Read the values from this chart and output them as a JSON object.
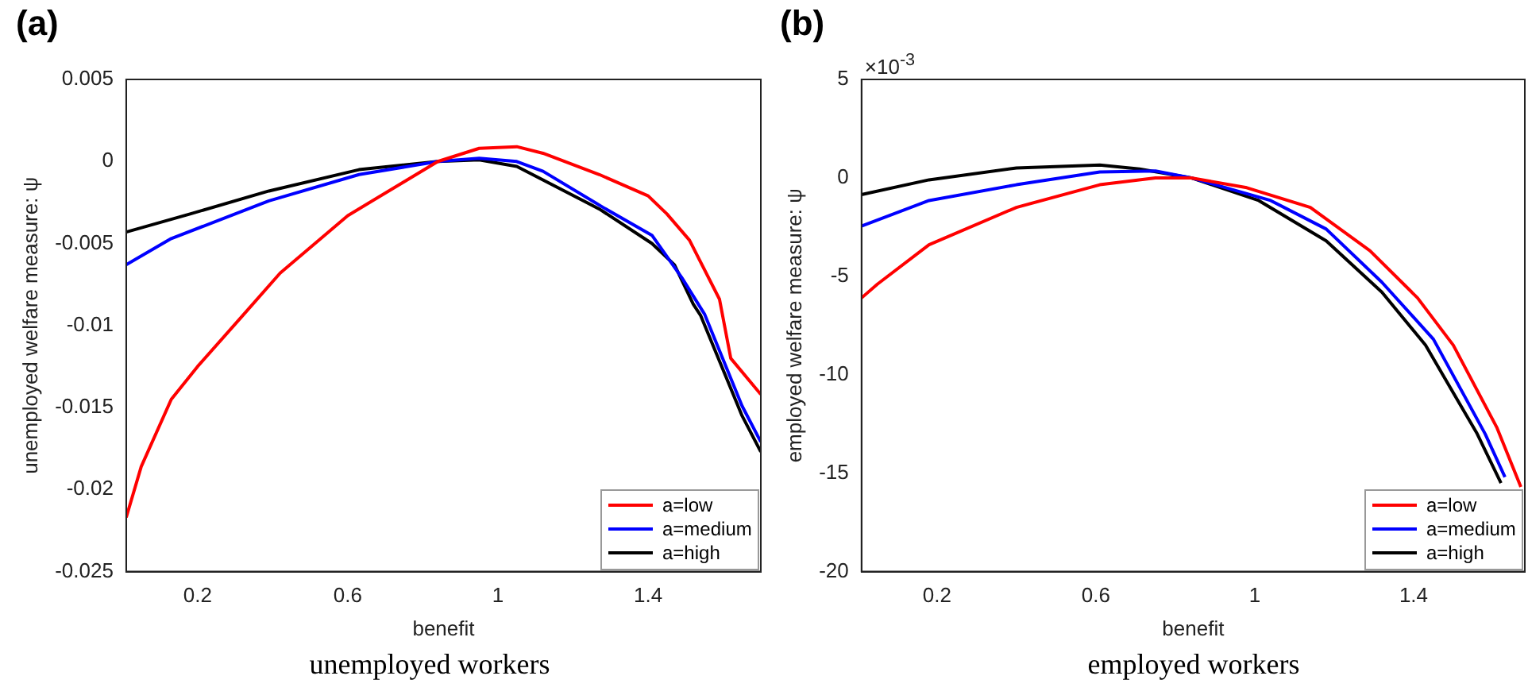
{
  "chart_data": [
    {
      "type": "line",
      "title": "(a)",
      "subtitle": "unemployed workers",
      "xlabel": "benefit",
      "ylabel": "unemployed welfare measure: ψ",
      "xlim": [
        0.01,
        1.7
      ],
      "xticks": [
        0.2,
        0.6,
        1,
        1.4
      ],
      "ylim": [
        -0.025,
        0.005
      ],
      "yticks": [
        -0.025,
        -0.02,
        -0.015,
        -0.01,
        -0.005,
        0,
        0.005
      ],
      "legend": "bottom right",
      "series": [
        {
          "name": "a=low",
          "color": "#ff0000",
          "x": [
            0.01,
            0.05,
            0.13,
            0.2,
            0.32,
            0.42,
            0.6,
            0.76,
            0.84,
            0.95,
            1.05,
            1.12,
            1.27,
            1.4,
            1.45,
            1.51,
            1.59,
            1.62,
            1.7
          ],
          "values": [
            -0.0217,
            -0.0186,
            -0.0145,
            -0.0125,
            -0.0094,
            -0.0068,
            -0.0033,
            -0.0011,
            0,
            0.0008,
            0.0009,
            0.0005,
            -0.0008,
            -0.0021,
            -0.0032,
            -0.0048,
            -0.0084,
            -0.012,
            -0.0142
          ]
        },
        {
          "name": "a=medium",
          "color": "#0000ff",
          "x": [
            0.01,
            0.13,
            0.39,
            0.63,
            0.84,
            0.95,
            1.05,
            1.12,
            1.28,
            1.41,
            1.49,
            1.55,
            1.65,
            1.7
          ],
          "values": [
            -0.0063,
            -0.0047,
            -0.0024,
            -0.0008,
            0,
            0.0002,
            0,
            -0.0006,
            -0.0028,
            -0.0045,
            -0.0071,
            -0.0093,
            -0.0149,
            -0.0171
          ]
        },
        {
          "name": "a=high",
          "color": "#000000",
          "x": [
            0.01,
            0.18,
            0.39,
            0.63,
            0.84,
            0.95,
            1.05,
            1.27,
            1.41,
            1.47,
            1.52,
            1.54,
            1.65,
            1.7
          ],
          "values": [
            -0.0043,
            -0.0032,
            -0.0018,
            -0.0005,
            0,
            0.0001,
            -0.0003,
            -0.0029,
            -0.005,
            -0.0063,
            -0.0087,
            -0.0094,
            -0.0155,
            -0.0177
          ]
        }
      ]
    },
    {
      "type": "line",
      "title": "(b)",
      "subtitle": "employed workers",
      "xlabel": "benefit",
      "ylabel": "employed welfare measure: ψ",
      "annotations": [
        "×10$^{-3}$"
      ],
      "xlim": [
        0.01,
        1.68
      ],
      "xticks": [
        0.2,
        0.6,
        1,
        1.4
      ],
      "ylim": [
        -20,
        5
      ],
      "yticks": [
        -20,
        -15,
        -10,
        -5,
        0,
        5
      ],
      "legend": "bottom right",
      "series": [
        {
          "name": "a=low",
          "color": "#ff0000",
          "x": [
            0.01,
            0.05,
            0.18,
            0.4,
            0.61,
            0.75,
            0.84,
            0.98,
            1.14,
            1.29,
            1.41,
            1.5,
            1.61,
            1.67
          ],
          "values": [
            -6.1,
            -5.4,
            -3.4,
            -1.5,
            -0.35,
            0,
            0,
            -0.5,
            -1.5,
            -3.7,
            -6.1,
            -8.5,
            -12.7,
            -15.7
          ]
        },
        {
          "name": "a=medium",
          "color": "#0000ff",
          "x": [
            0.01,
            0.18,
            0.4,
            0.61,
            0.75,
            0.84,
            1.04,
            1.18,
            1.32,
            1.45,
            1.58,
            1.63
          ],
          "values": [
            -2.45,
            -1.15,
            -0.35,
            0.3,
            0.35,
            0,
            -1.15,
            -2.6,
            -5.3,
            -8.2,
            -13,
            -15.2
          ]
        },
        {
          "name": "a=high",
          "color": "#000000",
          "x": [
            0.01,
            0.18,
            0.4,
            0.61,
            0.71,
            0.84,
            1.01,
            1.18,
            1.32,
            1.43,
            1.56,
            1.62
          ],
          "values": [
            -0.85,
            -0.1,
            0.5,
            0.65,
            0.45,
            0,
            -1.15,
            -3.2,
            -5.8,
            -8.5,
            -13,
            -15.5
          ]
        }
      ]
    }
  ]
}
